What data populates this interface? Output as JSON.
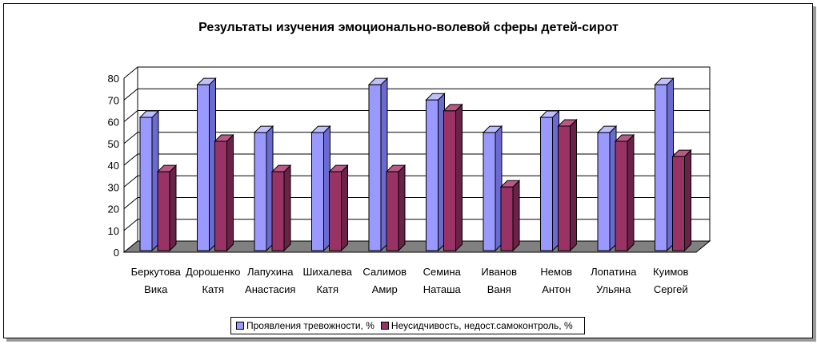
{
  "colors": {
    "series1": "#9999ff",
    "series1_side": "#6a6ad0",
    "series1_top": "#c0c0ff",
    "series2": "#993366",
    "series2_side": "#6a2247",
    "series2_top": "#b85a88",
    "floor": "#808080",
    "grid": "#000000"
  },
  "chart_data": {
    "type": "bar",
    "title": "Результаты изучения эмоционально-волевой сферы детей-сирот",
    "categories": [
      [
        "Беркутова",
        "Вика"
      ],
      [
        "Дорошенко",
        "Катя"
      ],
      [
        "Лапухина",
        "Анастасия"
      ],
      [
        "Шихалева",
        "Катя"
      ],
      [
        "Салимов",
        "Амир"
      ],
      [
        "Семина",
        "Наташа"
      ],
      [
        "Иванов",
        "Ваня"
      ],
      [
        "Немов",
        "Антон"
      ],
      [
        "Лопатина",
        "Ульяна"
      ],
      [
        "Куимов",
        "Сергей"
      ]
    ],
    "series": [
      {
        "name": "Проявления тревожности, %",
        "values": [
          62,
          77,
          55,
          55,
          77,
          70,
          55,
          62,
          55,
          77
        ]
      },
      {
        "name": "Неусидчивость, недост.самоконтроль, %",
        "values": [
          37,
          51,
          37,
          37,
          37,
          65,
          30,
          58,
          51,
          44
        ]
      }
    ],
    "yticks": [
      "0",
      "10",
      "20",
      "30",
      "40",
      "50",
      "60",
      "70",
      "80"
    ],
    "ylim": [
      0,
      80
    ],
    "grid": true,
    "legend": "bottom",
    "view": "3d"
  }
}
